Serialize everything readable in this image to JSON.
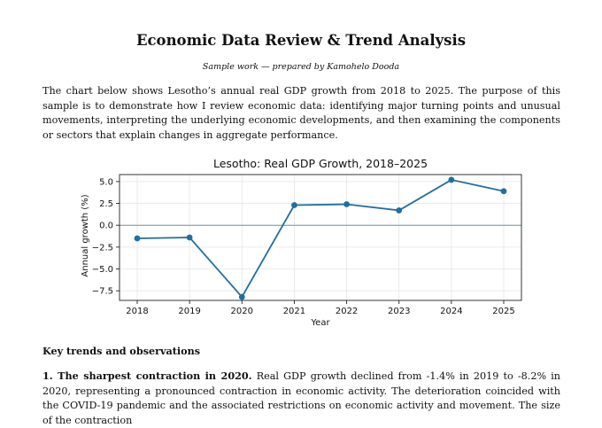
{
  "document": {
    "title": "Economic Data Review & Trend Analysis",
    "byline": "Sample work — prepared by Kamohelo Dooda",
    "intro": "The chart below shows Lesotho’s annual real GDP growth from 2018 to 2025. The purpose of this sample is to demonstrate how I review economic data: identifying major turning points and unusual movements, interpreting the underlying economic developments, and then examining the components or sectors that explain changes in aggregate performance.",
    "section_heading": "Key trends and observations",
    "point1_lead": "1. The sharpest contraction in 2020.",
    "point1_text": " Real GDP growth declined from -1.4% in 2019 to -8.2% in 2020, representing a pronounced contraction in economic activity. The deterioration coincided with the COVID-19 pandemic and the associated restrictions on economic activity and movement. The size of the contraction"
  },
  "chart_data": {
    "type": "line",
    "title": "Lesotho: Real GDP Growth, 2018–2025",
    "xlabel": "Year",
    "ylabel": "Annual growth (%)",
    "x": [
      2018,
      2019,
      2020,
      2021,
      2022,
      2023,
      2024,
      2025
    ],
    "x_tick_labels": [
      "2018",
      "2019",
      "2020",
      "2021",
      "2022",
      "2023",
      "2024",
      "2025"
    ],
    "series": [
      {
        "values": [
          -1.5,
          -1.4,
          -8.2,
          2.3,
          2.4,
          1.7,
          5.2,
          3.9
        ]
      }
    ],
    "ylim": [
      -8.6,
      5.8
    ],
    "y_ticks": [
      5.0,
      2.5,
      0.0,
      -2.5,
      -5.0,
      -7.5
    ],
    "y_tick_labels": [
      "5.0",
      "2.5",
      "0.0",
      "−2.5",
      "−5.0",
      "−7.5"
    ],
    "zero_line": true,
    "grid": true,
    "line_color": "#1f6f9f",
    "zero_line_color": "#6a93a8",
    "grid_color": "#e6e6e6"
  }
}
